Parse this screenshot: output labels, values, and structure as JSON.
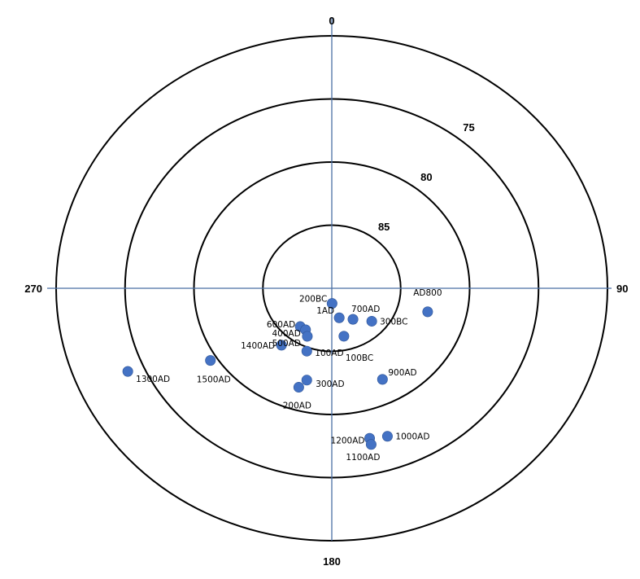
{
  "chart_data": {
    "type": "scatter",
    "subtype": "polar",
    "title": "",
    "point_color": "#4472c4",
    "axis_color": "#4a6fa5",
    "ring_color": "#000000",
    "angular_axis": {
      "labels": [
        {
          "text": "0",
          "angle": 0
        },
        {
          "text": "90",
          "angle": 90
        },
        {
          "text": "180",
          "angle": 180
        },
        {
          "text": "270",
          "angle": 270
        }
      ],
      "direction": "clockwise",
      "zero_at": "top"
    },
    "radial_axis": {
      "center_value": 90,
      "outer_value": 70,
      "rings": [
        {
          "value": 85,
          "label": "85"
        },
        {
          "value": 80,
          "label": "80"
        },
        {
          "value": 75,
          "label": "75"
        },
        {
          "value": 70,
          "label": ""
        }
      ]
    },
    "points": [
      {
        "label": "AD800",
        "angle": 105,
        "radius": 82.8
      },
      {
        "label": "200BC",
        "angle": 179,
        "radius": 88.8
      },
      {
        "label": "700AD",
        "angle": 148,
        "radius": 87.1
      },
      {
        "label": "300BC",
        "angle": 132,
        "radius": 86.1
      },
      {
        "label": "1AD",
        "angle": 167,
        "radius": 87.6
      },
      {
        "label": "100BC",
        "angle": 167,
        "radius": 86.1
      },
      {
        "label": "600AD",
        "angle": 217,
        "radius": 86.2
      },
      {
        "label": "400AD",
        "angle": 210,
        "radius": 86.2
      },
      {
        "label": "500AD",
        "angle": 205,
        "radius": 85.8
      },
      {
        "label": "1400AD",
        "angle": 219,
        "radius": 84.2
      },
      {
        "label": "100AD",
        "angle": 200,
        "radius": 84.7
      },
      {
        "label": "900AD",
        "angle": 153,
        "radius": 81.9
      },
      {
        "label": "300AD",
        "angle": 194,
        "radius": 82.5
      },
      {
        "label": "200AD",
        "angle": 197,
        "radius": 81.8
      },
      {
        "label": "1500AD",
        "angle": 237,
        "radius": 79.5
      },
      {
        "label": "1300AD",
        "angle": 246,
        "radius": 73.8
      },
      {
        "label": "1200AD",
        "angle": 167,
        "radius": 77.8
      },
      {
        "label": "1100AD",
        "angle": 167,
        "radius": 77.3
      },
      {
        "label": "1000AD",
        "angle": 161,
        "radius": 77.6
      }
    ]
  }
}
